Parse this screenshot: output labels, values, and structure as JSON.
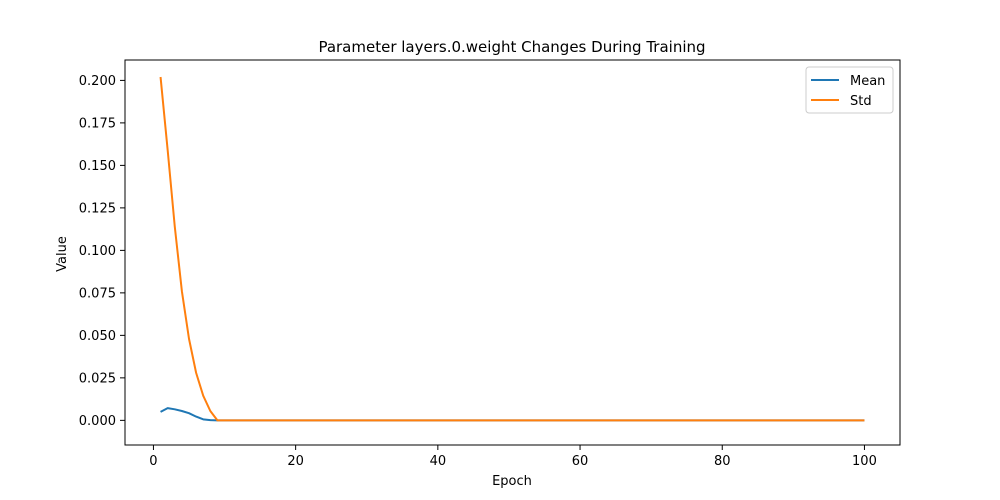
{
  "chart_data": {
    "type": "line",
    "title": "Parameter layers.0.weight Changes During Training",
    "xlabel": "Epoch",
    "ylabel": "Value",
    "xlim": [
      -4,
      105
    ],
    "ylim": [
      -0.0145,
      0.212
    ],
    "xticks": [
      0,
      20,
      40,
      60,
      80,
      100
    ],
    "yticks": [
      0.0,
      0.025,
      0.05,
      0.075,
      0.1,
      0.125,
      0.15,
      0.175,
      0.2
    ],
    "ytick_labels": [
      "0.000",
      "0.025",
      "0.050",
      "0.075",
      "0.100",
      "0.125",
      "0.150",
      "0.175",
      "0.200"
    ],
    "xtick_labels": [
      "0",
      "20",
      "40",
      "60",
      "80",
      "100"
    ],
    "legend_position": "top-right",
    "grid": false,
    "series": [
      {
        "name": "Mean",
        "color": "#1f77b4",
        "points": [
          [
            1,
            0.005
          ],
          [
            2,
            0.0072
          ],
          [
            3,
            0.0065
          ],
          [
            4,
            0.0055
          ],
          [
            5,
            0.0042
          ],
          [
            6,
            0.0022
          ],
          [
            7,
            0.0006
          ],
          [
            8,
            0.0001
          ],
          [
            9,
            0.0
          ],
          [
            100,
            0.0
          ]
        ]
      },
      {
        "name": "Std",
        "color": "#ff7f0e",
        "points": [
          [
            1,
            0.202
          ],
          [
            2,
            0.159
          ],
          [
            3,
            0.114
          ],
          [
            4,
            0.076
          ],
          [
            5,
            0.048
          ],
          [
            6,
            0.028
          ],
          [
            7,
            0.0145
          ],
          [
            8,
            0.0055
          ],
          [
            9,
            0.0
          ],
          [
            100,
            0.0
          ]
        ]
      }
    ]
  }
}
